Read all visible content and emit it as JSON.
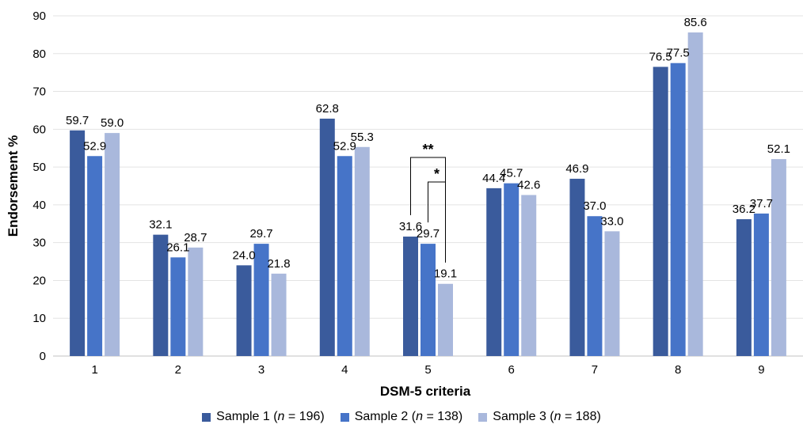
{
  "chart_data": {
    "type": "bar",
    "title": "",
    "xlabel": "DSM-5 criteria",
    "ylabel": "Endorsement %",
    "ylim": [
      0,
      90
    ],
    "yticks": [
      "0",
      "10",
      "20",
      "30",
      "40",
      "50",
      "60",
      "70",
      "80",
      "90"
    ],
    "grid": true,
    "legend_position": "bottom",
    "categories": [
      "1",
      "2",
      "3",
      "4",
      "5",
      "6",
      "7",
      "8",
      "9"
    ],
    "series": [
      {
        "name": "Sample 1",
        "n": "196",
        "color": "#3a5b9c",
        "values": [
          59.7,
          32.1,
          24.0,
          62.8,
          31.6,
          44.4,
          46.9,
          76.5,
          36.2
        ],
        "labels": [
          "59.7",
          "32.1",
          "24.0",
          "62.8",
          "31.6",
          "44.4",
          "46.9",
          "76.5",
          "36.2"
        ]
      },
      {
        "name": "Sample 2",
        "n": "138",
        "color": "#4674c8",
        "values": [
          52.9,
          26.1,
          29.7,
          52.9,
          29.7,
          45.7,
          37.0,
          77.5,
          37.7
        ],
        "labels": [
          "52.9",
          "26.1",
          "29.7",
          "52.9",
          "29.7",
          "45.7",
          "37.0",
          "77.5",
          "37.7"
        ]
      },
      {
        "name": "Sample 3",
        "n": "188",
        "color": "#a9b8dc",
        "values": [
          59.0,
          28.7,
          21.8,
          55.3,
          19.1,
          42.6,
          33.0,
          85.6,
          52.1
        ],
        "labels": [
          "59.0",
          "28.7",
          "21.8",
          "55.3",
          "19.1",
          "42.6",
          "33.0",
          "85.6",
          "52.1"
        ]
      }
    ],
    "significance": [
      {
        "category": "5",
        "from_series": 0,
        "to_series": 2,
        "label": "**"
      },
      {
        "category": "5",
        "from_series": 1,
        "to_series": 2,
        "label": "*"
      }
    ]
  },
  "legend": {
    "n_text": "n",
    "eq_open": " (",
    "eq_mid": " = ",
    "eq_close": ")"
  }
}
